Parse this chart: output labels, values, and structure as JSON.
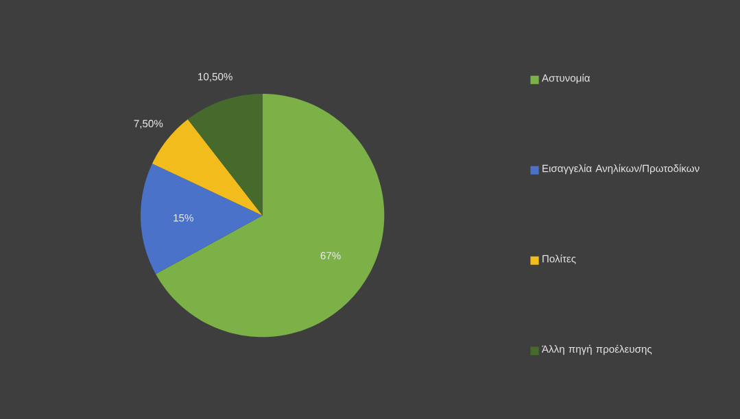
{
  "chart_data": {
    "type": "pie",
    "categories": [
      "Αστυνομία",
      "Εισαγγελία Ανηλίκων/Πρωτοδίκων",
      "Πολίτες",
      "Άλλη πηγή προέλευσης"
    ],
    "values": [
      67,
      15,
      7.5,
      10.5
    ],
    "colors": [
      "#7cb148",
      "#4a72c8",
      "#f2bd1c",
      "#466a2c"
    ],
    "value_labels": [
      "67%",
      "15%",
      "7,50%",
      "10,50%"
    ],
    "legend": "right"
  }
}
